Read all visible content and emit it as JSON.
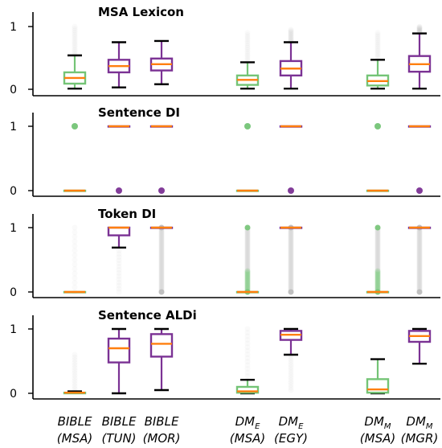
{
  "chart_data": {
    "type": "box",
    "categories": [
      {
        "line1": "BIBLE",
        "line2": "(MSA)"
      },
      {
        "line1": "BIBLE",
        "line2": "(TUN)"
      },
      {
        "line1": "BIBLE",
        "line2": "(MOR)"
      },
      {
        "line1": "DM",
        "sub": "E",
        "line2": "(MSA)"
      },
      {
        "line1": "DM",
        "sub": "E",
        "line2": "(EGY)"
      },
      {
        "line1": "DM",
        "sub": "M",
        "line2": "(MSA)"
      },
      {
        "line1": "DM",
        "sub": "M",
        "line2": "(MGR)"
      }
    ],
    "box_colors": [
      "#74c476",
      "#7b3294",
      "#7b3294",
      "#74c476",
      "#7b3294",
      "#74c476",
      "#7b3294"
    ],
    "median_color": "#ff7f0e",
    "ylim": [
      -0.08,
      1.2
    ],
    "yticks": [
      0,
      1
    ],
    "panels": [
      {
        "title": "MSA Lexicon",
        "boxes": [
          {
            "whislo": 0.01,
            "q1": 0.09,
            "med": 0.18,
            "q3": 0.27,
            "whishi": 0.54,
            "fliers_top": 1.0
          },
          {
            "whislo": 0.03,
            "q1": 0.27,
            "med": 0.37,
            "q3": 0.47,
            "whishi": 0.75
          },
          {
            "whislo": 0.08,
            "q1": 0.3,
            "med": 0.4,
            "q3": 0.49,
            "whishi": 0.77
          },
          {
            "whislo": 0.01,
            "q1": 0.07,
            "med": 0.15,
            "q3": 0.22,
            "whishi": 0.43,
            "fliers_top": 0.9
          },
          {
            "whislo": 0.01,
            "q1": 0.22,
            "med": 0.33,
            "q3": 0.45,
            "whishi": 0.75,
            "fliers_top": 0.95
          },
          {
            "whislo": 0.01,
            "q1": 0.06,
            "med": 0.13,
            "q3": 0.22,
            "whishi": 0.47,
            "fliers_top": 0.9
          },
          {
            "whislo": 0.01,
            "q1": 0.28,
            "med": 0.4,
            "q3": 0.53,
            "whishi": 0.89,
            "fliers_top": 1.0
          }
        ]
      },
      {
        "title": "Sentence DI",
        "boxes": [
          {
            "whislo": 0,
            "q1": 0,
            "med": 0,
            "q3": 0,
            "whishi": 0,
            "fliers": [
              1
            ]
          },
          {
            "whislo": 1,
            "q1": 1,
            "med": 1,
            "q3": 1,
            "whishi": 1,
            "fliers": [
              0
            ]
          },
          {
            "whislo": 1,
            "q1": 1,
            "med": 1,
            "q3": 1,
            "whishi": 1,
            "fliers": [
              0
            ]
          },
          {
            "whislo": 0,
            "q1": 0,
            "med": 0,
            "q3": 0,
            "whishi": 0,
            "fliers": [
              1
            ]
          },
          {
            "whislo": 1,
            "q1": 1,
            "med": 1,
            "q3": 1,
            "whishi": 1,
            "fliers": [
              0
            ]
          },
          {
            "whislo": 0,
            "q1": 0,
            "med": 0,
            "q3": 0,
            "whishi": 0,
            "fliers": [
              1
            ]
          },
          {
            "whislo": 1,
            "q1": 1,
            "med": 1,
            "q3": 1,
            "whishi": 1,
            "fliers": [
              0
            ]
          }
        ]
      },
      {
        "title": "Token DI",
        "boxes": [
          {
            "whislo": 0,
            "q1": 0,
            "med": 0,
            "q3": 0,
            "whishi": 0,
            "fliers_top": 1.0
          },
          {
            "whislo": 0.69,
            "q1": 0.88,
            "med": 1,
            "q3": 1,
            "whishi": 1,
            "fliers_bottom": 0
          },
          {
            "whislo": 1,
            "q1": 1,
            "med": 1,
            "q3": 1,
            "whishi": 1,
            "fliers_dense": [
              0,
              1
            ]
          },
          {
            "whislo": 0,
            "q1": 0,
            "med": 0,
            "q3": 0,
            "whishi": 0,
            "fliers_dense": [
              0,
              1
            ]
          },
          {
            "whislo": 1,
            "q1": 1,
            "med": 1,
            "q3": 1,
            "whishi": 1,
            "fliers_dense": [
              0,
              1
            ]
          },
          {
            "whislo": 0,
            "q1": 0,
            "med": 0,
            "q3": 0,
            "whishi": 0,
            "fliers_dense": [
              0,
              1
            ]
          },
          {
            "whislo": 1,
            "q1": 1,
            "med": 1,
            "q3": 1,
            "whishi": 1,
            "fliers_dense": [
              0,
              1
            ]
          }
        ]
      },
      {
        "title": "Sentence ALDi",
        "boxes": [
          {
            "whislo": 0,
            "q1": 0,
            "med": 0.01,
            "q3": 0.01,
            "whishi": 0.03,
            "fliers_top": 0.6
          },
          {
            "whislo": 0,
            "q1": 0.48,
            "med": 0.7,
            "q3": 0.85,
            "whishi": 1.0
          },
          {
            "whislo": 0.05,
            "q1": 0.57,
            "med": 0.77,
            "q3": 0.92,
            "whishi": 1.0
          },
          {
            "whislo": 0,
            "q1": 0.01,
            "med": 0.03,
            "q3": 0.1,
            "whishi": 0.21,
            "fliers_top": 1.0
          },
          {
            "whislo": 0.6,
            "q1": 0.83,
            "med": 0.91,
            "q3": 0.97,
            "whishi": 1.0,
            "fliers_bottom": 0.05
          },
          {
            "whislo": 0,
            "q1": 0.01,
            "med": 0.06,
            "q3": 0.22,
            "whishi": 0.53
          },
          {
            "whislo": 0.46,
            "q1": 0.8,
            "med": 0.89,
            "q3": 0.97,
            "whishi": 1.0
          }
        ]
      }
    ]
  }
}
